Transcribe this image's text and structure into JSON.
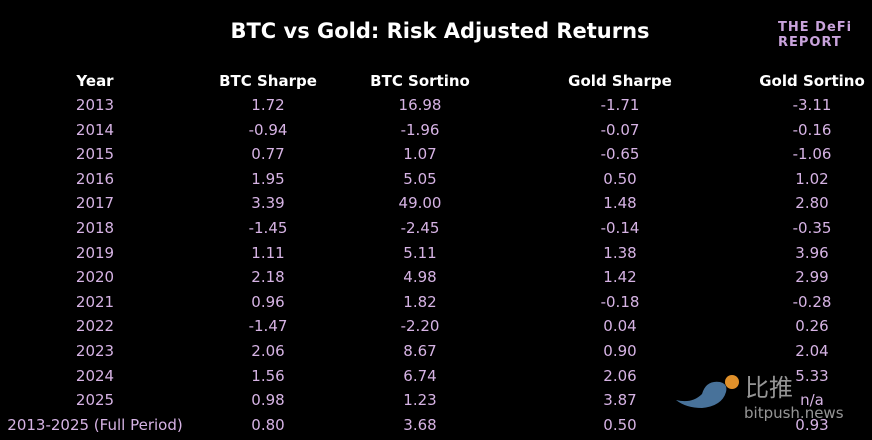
{
  "header": {
    "title": "BTC vs Gold: Risk Adjusted Returns",
    "logo_line1": "THE DeFi",
    "logo_line2": "REPORT"
  },
  "table": {
    "columns": [
      "Year",
      "BTC Sharpe",
      "BTC Sortino",
      "Gold Sharpe",
      "Gold Sortino"
    ],
    "rows": [
      [
        "2013",
        "1.72",
        "16.98",
        "-1.71",
        "-3.11"
      ],
      [
        "2014",
        "-0.94",
        "-1.96",
        "-0.07",
        "-0.16"
      ],
      [
        "2015",
        "0.77",
        "1.07",
        "-0.65",
        "-1.06"
      ],
      [
        "2016",
        "1.95",
        "5.05",
        "0.50",
        "1.02"
      ],
      [
        "2017",
        "3.39",
        "49.00",
        "1.48",
        "2.80"
      ],
      [
        "2018",
        "-1.45",
        "-2.45",
        "-0.14",
        "-0.35"
      ],
      [
        "2019",
        "1.11",
        "5.11",
        "1.38",
        "3.96"
      ],
      [
        "2020",
        "2.18",
        "4.98",
        "1.42",
        "2.99"
      ],
      [
        "2021",
        "0.96",
        "1.82",
        "-0.18",
        "-0.28"
      ],
      [
        "2022",
        "-1.47",
        "-2.20",
        "0.04",
        "0.26"
      ],
      [
        "2023",
        "2.06",
        "8.67",
        "0.90",
        "2.04"
      ],
      [
        "2024",
        "1.56",
        "6.74",
        "2.06",
        "5.33"
      ],
      [
        "2025",
        "0.98",
        "1.23",
        "3.87",
        "n/a"
      ],
      [
        "2013-2025 (Full Period)",
        "0.80",
        "3.68",
        "0.50",
        "0.93"
      ]
    ]
  },
  "watermark": {
    "brand": "比推",
    "site": "bitpush.news"
  }
}
